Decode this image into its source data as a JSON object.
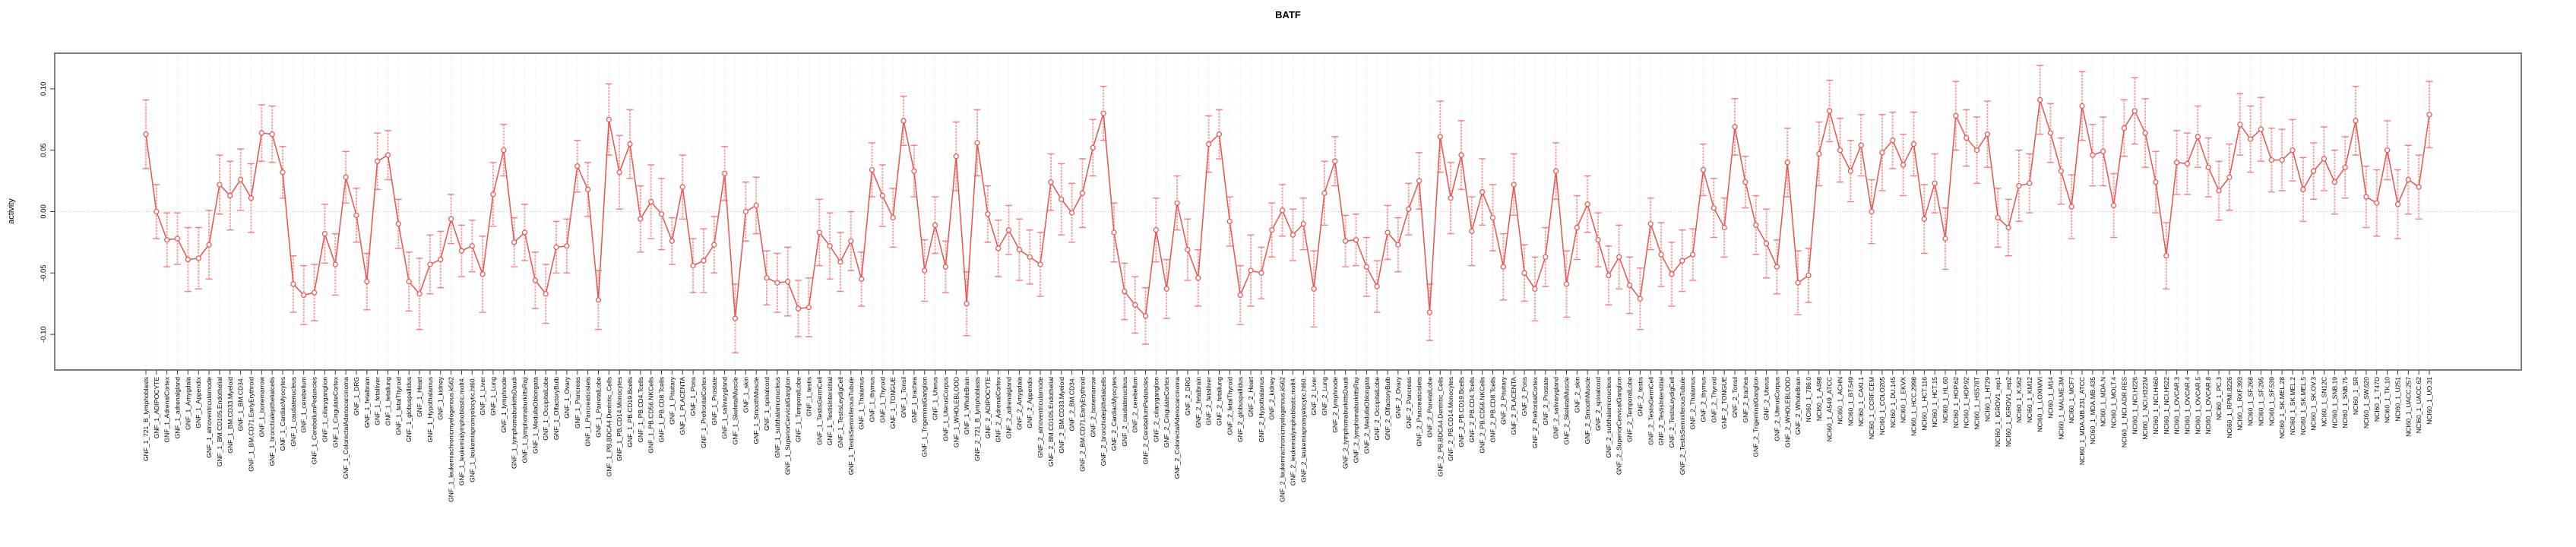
{
  "title": "BATF",
  "ylabel": "activity",
  "colors": {
    "series_line": "#e9534e",
    "point_stroke": "#e9534e",
    "point_fill": "#ffffff",
    "error_bar": "#f4a1a1",
    "error_cap": "#ee8181",
    "grid": "#dcdcdc",
    "zero_line": "#c8c8c8",
    "box": "#7f7f7f",
    "tick": "#3a3a3a",
    "text": "#000000"
  },
  "chart_data": {
    "type": "line",
    "title": "BATF",
    "xlabel": "",
    "ylabel": "activity",
    "ylim": [
      -0.129,
      0.129
    ],
    "yticks": [
      0.1,
      0.05,
      0.0,
      -0.05,
      -0.1
    ],
    "ytick_labels": [
      "0.10",
      "0.05",
      "0.00",
      "-0.05",
      "-0.10"
    ],
    "grid": true,
    "legend": "none",
    "marker": "open-circle",
    "error_bars": true,
    "categories": [
      "GNF_1_721_B_lymphoblasts",
      "GNF_1_ADIPOCYTE",
      "GNF_1_AdrenalCortex",
      "GNF_1_adrenalgland",
      "GNF_1_Amygdala",
      "GNF_1_Appendix",
      "GNF_1_atrioventricularnode",
      "GNF_1_BM.CD105.Endothelial",
      "GNF_1_BM.CD33.Myeloid",
      "GNF_1_BM.CD34.",
      "GNF_1_BM.CD71.EarlyErythroid",
      "GNF_1_bonemarrow",
      "GNF_1_bronchialepithelialcells",
      "GNF_1_CardiacMyocytes",
      "GNF_1_caudatenucleus",
      "GNF_1_cerebellum",
      "GNF_1_CerebellumPeduncles",
      "GNF_1_ciliaryganglion",
      "GNF_1_CingulateCortex",
      "GNF_1_ColorectalAdenocarcinoma",
      "GNF_1_DRG",
      "GNF_1_fetalbrain",
      "GNF_1_fetalliver",
      "GNF_1_fetallung",
      "GNF_1_fetalThyroid",
      "GNF_1_globuspallidus",
      "GNF_1_Heart",
      "GNF_1_Hypothalamus",
      "GNF_1_kidney",
      "GNF_1_leukemiachronicmyelogenous.k562",
      "GNF_1_leukemialymphoblastic.molt4.",
      "GNF_1_leukemiapromyelocytic.hl60.",
      "GNF_1_Liver",
      "GNF_1_Lung",
      "GNF_1_lymphnode",
      "GNF_1_lymphomaburkittsDaudi",
      "GNF_1_lymphomaburkittsRaji",
      "GNF_1_MedullaOblongata",
      "GNF_1_OccipitalLobe",
      "GNF_1_OlfactoryBulb",
      "GNF_1_Ovary",
      "GNF_1_Pancreas",
      "GNF_1_Pancreaticislets",
      "GNF_1_ParietalLobe",
      "GNF_1_PB.BDCA4.Dentritic_Cells",
      "GNF_1_PB.CD14.Monocytes",
      "GNF_1_PB.CD19.Bcells",
      "GNF_1_PB.CD4.Tcells",
      "GNF_1_PB.CD56.NKCells",
      "GNF_1_PB.CD8.Tcells",
      "GNF_1_Pituitary",
      "GNF_1_PLACENTA",
      "GNF_1_Pons",
      "GNF_1_PrefrontalCortex",
      "GNF_1_Prostate",
      "GNF_1_salivarygland",
      "GNF_1_SkeletalMuscle",
      "GNF_1_skin",
      "GNF_1_SmoothMuscle",
      "GNF_1_spinalcord",
      "GNF_1_subthalamicnucleus",
      "GNF_1_SuperiorCervicalGanglion",
      "GNF_1_TemporalLobe",
      "GNF_1_testis",
      "GNF_1_TestisGermCell",
      "GNF_1_TestisInterstitial",
      "GNF_1_TestisLeydigCell",
      "GNF_1_TestisSeminiferousTubule",
      "GNF_1_Thalamus",
      "GNF_1_thymus",
      "GNF_1_Thyroid",
      "GNF_1_TONGUE",
      "GNF_1_Tonsil",
      "GNF_1_trachea",
      "GNF_1_TrigeminalGanglion",
      "GNF_1_Uterus",
      "GNF_1_UterusCorpus",
      "GNF_1_WHOLEBLOOD",
      "GNF_1_WholeBrain",
      "GNF_2_721_B_lymphoblasts",
      "GNF_2_ADIPOCYTE",
      "GNF_2_AdrenalCortex",
      "GNF_2_adrenalgland",
      "GNF_2_Amygdala",
      "GNF_2_Appendix",
      "GNF_2_atrioventricularnode",
      "GNF_2_BM.CD105.Endothelial",
      "GNF_2_BM.CD33.Myeloid",
      "GNF_2_BM.CD34.",
      "GNF_2_BM.CD71.EarlyErythroid",
      "GNF_2_bonemarrow",
      "GNF_2_bronchialepithelialcells",
      "GNF_2_CardiacMyocytes",
      "GNF_2_caudatenucleus",
      "GNF_2_cerebellum",
      "GNF_2_CerebellumPeduncles",
      "GNF_2_ciliaryganglion",
      "GNF_2_CingulateCortex",
      "GNF_2_ColorectalAdenocarcinoma",
      "GNF_2_DRG",
      "GNF_2_fetalbrain",
      "GNF_2_fetalliver",
      "GNF_2_fetallung",
      "GNF_2_fetalThyroid",
      "GNF_2_globuspallidus",
      "GNF_2_Heart",
      "GNF_2_Hypothalamus",
      "GNF_2_kidney",
      "GNF_2_leukemiachronicmyelogenous.k562",
      "GNF_2_leukemialymphoblastic.molt4.",
      "GNF_2_leukemiapromyelocytic.hl60.",
      "GNF_2_Liver",
      "GNF_2_Lung",
      "GNF_2_lymphnode",
      "GNF_2_lymphomaburkittsDaudi",
      "GNF_2_lymphomaburkittsRaji",
      "GNF_2_MedullaOblongata",
      "GNF_2_OccipitalLobe",
      "GNF_2_OlfactoryBulb",
      "GNF_2_Ovary",
      "GNF_2_Pancreas",
      "GNF_2_Pancreaticislets",
      "GNF_2_ParietalLobe",
      "GNF_2_PB.BDCA4.Dentritic_Cells",
      "GNF_2_PB.CD14.Monocytes",
      "GNF_2_PB.CD19.Bcells",
      "GNF_2_PB.CD4.Tcells",
      "GNF_2_PB.CD56.NKCells",
      "GNF_2_PB.CD8.Tcells",
      "GNF_2_Pituitary",
      "GNF_2_PLACENTA",
      "GNF_2_Pons",
      "GNF_2_PrefrontalCortex",
      "GNF_2_Prostate",
      "GNF_2_salivarygland",
      "GNF_2_SkeletalMuscle",
      "GNF_2_skin",
      "GNF_2_SmoothMuscle",
      "GNF_2_spinalcord",
      "GNF_2_subthalamicnucleus",
      "GNF_2_SuperiorCervicalGanglion",
      "GNF_2_TemporalLobe",
      "GNF_2_testis",
      "GNF_2_TestisGermCell",
      "GNF_2_TestisInterstitial",
      "GNF_2_TestisLeydigCell",
      "GNF_2_TestisSeminiferousTubule",
      "GNF_2_Thalamus",
      "GNF_2_thymus",
      "GNF_2_Thyroid",
      "GNF_2_TONGUE",
      "GNF_2_Tonsil",
      "GNF_2_trachea",
      "GNF_2_TrigeminalGanglion",
      "GNF_2_Uterus",
      "GNF_2_UterusCorpus",
      "GNF_2_WHOLEBLOOD",
      "GNF_2_WholeBrain",
      "NCI60_1_786.0",
      "NCI60_1_A498",
      "NCI60_1_A549_ATCC",
      "NCI60_1_ACHN",
      "NCI60_1_BT.549",
      "NCI60_1_CAKI.1",
      "NCI60_1_CCRF.CEM",
      "NCI60_1_COLO205",
      "NCI60_1_DU.145",
      "NCI60_1_EKVX",
      "NCI60_1_HCC.2998",
      "NCI60_1_HCT.116",
      "NCI60_1_HCT.15",
      "NCI60_1_HL.60",
      "NCI60_1_HOP.62",
      "NCI60_1_HOP.92",
      "NCI60_1_HS578T",
      "NCI60_1_HT29",
      "NCI60_1_IGROV1_rep1",
      "NCI60_1_IGROV1_rep2",
      "NCI60_1_K.562",
      "NCI60_1_KM12",
      "NCI60_1_LOXIMVI",
      "NCI60_1_M14",
      "NCI60_1_MALME.3M",
      "NCI60_1_MCF7",
      "NCI60_1_MDA.MB.231_ATCC",
      "NCI60_1_MDA.MB.435",
      "NCI60_1_MDA.N",
      "NCI60_1_MOLT.4",
      "NCI60_1_NCI.ADR.RES",
      "NCI60_1_NCI.H226",
      "NCI60_1_NCI.H322M",
      "NCI60_1_NCI.H460",
      "NCI60_1_NCI.H522",
      "NCI60_1_OVCAR.3",
      "NCI60_1_OVCAR.4",
      "NCI60_1_OVCAR.5",
      "NCI60_1_OVCAR.8",
      "NCI60_1_PC.3",
      "NCI60_1_RPMI.8226",
      "NCI60_1_RXF.393",
      "NCI60_1_SF.268",
      "NCI60_1_SF.295",
      "NCI60_1_SF.539",
      "NCI60_1_SK.MEL.28",
      "NCI60_1_SK.MEL.2",
      "NCI60_1_SK.MEL.5",
      "NCI60_1_SK.OV.3",
      "NCI60_1_SN12C",
      "NCI60_1_SNB.19",
      "NCI60_1_SNB.75",
      "NCI60_1_SR",
      "NCI60_1_SW.620",
      "NCI60_1_T47D",
      "NCI60_1_TK.10",
      "NCI60_1_U251",
      "NCI60_1_UACC.257",
      "NCI60_1_UACC.62",
      "NCI60_1_UO.31"
    ],
    "series": [
      {
        "name": "activity",
        "values": [
          0.063,
          0.0,
          -0.023,
          -0.022,
          -0.039,
          -0.038,
          -0.027,
          0.022,
          0.013,
          0.026,
          0.011,
          0.064,
          0.063,
          0.032,
          -0.059,
          -0.068,
          -0.066,
          -0.018,
          -0.043,
          0.028,
          -0.003,
          -0.057,
          0.041,
          0.046,
          -0.01,
          -0.057,
          -0.067,
          -0.043,
          -0.039,
          -0.006,
          -0.032,
          -0.028,
          -0.051,
          0.014,
          0.05,
          -0.025,
          -0.017,
          -0.056,
          -0.067,
          -0.029,
          -0.028,
          0.037,
          0.018,
          -0.072,
          0.075,
          0.032,
          0.055,
          -0.006,
          0.008,
          -0.002,
          -0.024,
          0.02,
          -0.044,
          -0.04,
          -0.027,
          0.031,
          -0.087,
          0.0,
          0.005,
          -0.054,
          -0.058,
          -0.057,
          -0.079,
          -0.078,
          -0.017,
          -0.028,
          -0.041,
          -0.024,
          -0.055,
          0.034,
          0.013,
          -0.005,
          0.074,
          0.033,
          -0.048,
          -0.011,
          -0.045,
          0.045,
          -0.075,
          0.056,
          -0.002,
          -0.03,
          -0.015,
          -0.031,
          -0.037,
          -0.043,
          0.024,
          0.01,
          -0.001,
          0.015,
          0.052,
          0.08,
          -0.017,
          -0.065,
          -0.076,
          -0.085,
          -0.015,
          -0.063,
          0.007,
          -0.031,
          -0.054,
          0.055,
          0.063,
          -0.008,
          -0.068,
          -0.048,
          -0.05,
          -0.015,
          0.001,
          -0.019,
          -0.01,
          -0.063,
          0.015,
          0.041,
          -0.024,
          -0.023,
          -0.045,
          -0.061,
          -0.017,
          -0.027,
          0.002,
          0.025,
          -0.082,
          0.061,
          0.011,
          0.046,
          -0.016,
          0.016,
          -0.005,
          -0.045,
          0.022,
          -0.05,
          -0.063,
          -0.037,
          0.033,
          -0.059,
          -0.013,
          0.006,
          -0.023,
          -0.052,
          -0.037,
          -0.06,
          -0.071,
          -0.01,
          -0.035,
          -0.051,
          -0.04,
          -0.035,
          0.034,
          0.003,
          -0.013,
          0.069,
          0.024,
          -0.011,
          -0.026,
          -0.045,
          0.04,
          -0.058,
          -0.052,
          0.047,
          0.082,
          0.05,
          0.033,
          0.054,
          0.0,
          0.048,
          0.058,
          0.038,
          0.055,
          -0.006,
          0.023,
          -0.022,
          0.078,
          0.06,
          0.05,
          0.063,
          -0.005,
          -0.013,
          0.021,
          0.023,
          0.091,
          0.064,
          0.033,
          0.004,
          0.086,
          0.046,
          0.049,
          0.005,
          0.068,
          0.082,
          0.064,
          0.024,
          -0.036,
          0.04,
          0.039,
          0.061,
          0.036,
          0.017,
          0.028,
          0.071,
          0.059,
          0.067,
          0.042,
          0.042,
          0.05,
          0.018,
          0.033,
          0.043,
          0.024,
          0.036,
          0.074,
          0.012,
          0.007,
          0.05,
          0.006,
          0.026,
          0.02,
          0.079
        ],
        "errors": [
          0.028,
          0.022,
          0.022,
          0.021,
          0.026,
          0.025,
          0.028,
          0.024,
          0.028,
          0.025,
          0.028,
          0.023,
          0.023,
          0.021,
          0.023,
          0.024,
          0.023,
          0.024,
          0.025,
          0.021,
          0.022,
          0.023,
          0.023,
          0.02,
          0.02,
          0.024,
          0.029,
          0.024,
          0.023,
          0.02,
          0.021,
          0.021,
          0.031,
          0.026,
          0.021,
          0.02,
          0.023,
          0.023,
          0.024,
          0.021,
          0.022,
          0.021,
          0.022,
          0.024,
          0.029,
          0.03,
          0.028,
          0.027,
          0.03,
          0.029,
          0.019,
          0.026,
          0.022,
          0.026,
          0.023,
          0.022,
          0.028,
          0.024,
          0.023,
          0.022,
          0.024,
          0.028,
          0.023,
          0.024,
          0.027,
          0.027,
          0.024,
          0.024,
          0.022,
          0.022,
          0.025,
          0.024,
          0.02,
          0.021,
          0.025,
          0.023,
          0.021,
          0.028,
          0.026,
          0.027,
          0.023,
          0.023,
          0.02,
          0.025,
          0.022,
          0.026,
          0.023,
          0.029,
          0.024,
          0.028,
          0.023,
          0.022,
          0.024,
          0.023,
          0.023,
          0.023,
          0.026,
          0.024,
          0.022,
          0.025,
          0.023,
          0.023,
          0.02,
          0.02,
          0.024,
          0.029,
          0.021,
          0.022,
          0.021,
          0.021,
          0.021,
          0.031,
          0.026,
          0.02,
          0.021,
          0.021,
          0.024,
          0.021,
          0.022,
          0.022,
          0.021,
          0.023,
          0.023,
          0.029,
          0.029,
          0.028,
          0.028,
          0.027,
          0.027,
          0.027,
          0.025,
          0.023,
          0.026,
          0.024,
          0.023,
          0.027,
          0.026,
          0.023,
          0.022,
          0.024,
          0.026,
          0.023,
          0.025,
          0.021,
          0.026,
          0.026,
          0.025,
          0.021,
          0.021,
          0.024,
          0.024,
          0.023,
          0.021,
          0.024,
          0.028,
          0.022,
          0.028,
          0.026,
          0.022,
          0.026,
          0.025,
          0.026,
          0.025,
          0.025,
          0.026,
          0.031,
          0.023,
          0.025,
          0.026,
          0.028,
          0.024,
          0.025,
          0.028,
          0.023,
          0.027,
          0.027,
          0.024,
          0.023,
          0.029,
          0.024,
          0.028,
          0.024,
          0.027,
          0.026,
          0.028,
          0.025,
          0.028,
          0.026,
          0.023,
          0.027,
          0.028,
          0.025,
          0.027,
          0.026,
          0.025,
          0.025,
          0.024,
          0.024,
          0.027,
          0.025,
          0.027,
          0.026,
          0.026,
          0.025,
          0.025,
          0.026,
          0.023,
          0.026,
          0.026,
          0.025,
          0.028,
          0.025,
          0.027,
          0.024,
          0.028,
          0.028,
          0.026,
          0.027
        ]
      }
    ]
  }
}
